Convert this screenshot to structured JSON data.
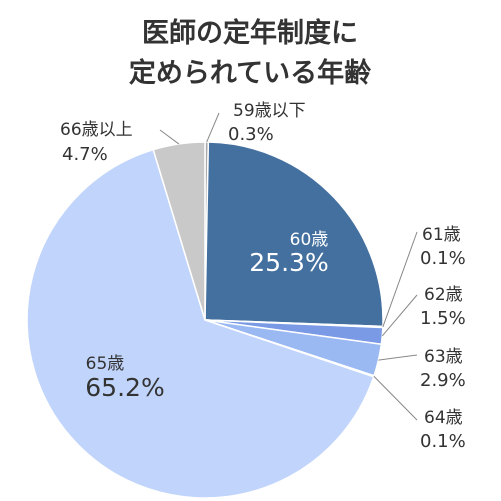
{
  "chart_data": {
    "type": "pie",
    "title_lines": [
      "医師の定年制度に",
      "定められている年齢"
    ],
    "slices": [
      {
        "label": "59歳以下",
        "value": 0.3,
        "pct": "0.3%",
        "color": "#a7a9ac"
      },
      {
        "label": "60歳",
        "value": 25.3,
        "pct": "25.3%",
        "color": "#44709f"
      },
      {
        "label": "61歳",
        "value": 0.1,
        "pct": "0.1%",
        "color": "#6f8fc2"
      },
      {
        "label": "62歳",
        "value": 1.5,
        "pct": "1.5%",
        "color": "#7a9ae6"
      },
      {
        "label": "63歳",
        "value": 2.9,
        "pct": "2.9%",
        "color": "#9ab9f2"
      },
      {
        "label": "64歳",
        "value": 0.1,
        "pct": "0.1%",
        "color": "#b3c9f4"
      },
      {
        "label": "65歳",
        "value": 65.2,
        "pct": "65.2%",
        "color": "#c1d4fb"
      },
      {
        "label": "66歳以上",
        "value": 4.7,
        "pct": "4.7%",
        "color": "#c9c9c9"
      }
    ]
  }
}
